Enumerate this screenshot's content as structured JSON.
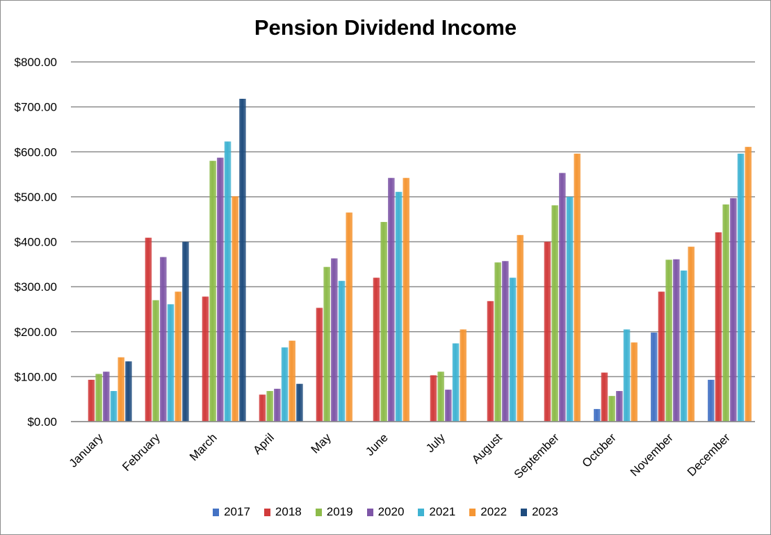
{
  "chart_data": {
    "type": "bar",
    "title": "Pension Dividend Income",
    "xlabel": "",
    "ylabel": "",
    "ylim": [
      0,
      800
    ],
    "yticks": [
      {
        "value": 0,
        "label": "$0.00"
      },
      {
        "value": 100,
        "label": "$100.00"
      },
      {
        "value": 200,
        "label": "$200.00"
      },
      {
        "value": 300,
        "label": "$300.00"
      },
      {
        "value": 400,
        "label": "$400.00"
      },
      {
        "value": 500,
        "label": "$500.00"
      },
      {
        "value": 600,
        "label": "$600.00"
      },
      {
        "value": 700,
        "label": "$700.00"
      },
      {
        "value": 800,
        "label": "$800.00"
      }
    ],
    "grid": true,
    "legend_position": "bottom",
    "categories": [
      "January",
      "February",
      "March",
      "April",
      "May",
      "June",
      "July",
      "August",
      "September",
      "October",
      "November",
      "December"
    ],
    "series": [
      {
        "name": "2017",
        "color": "#4472C4",
        "values": [
          0,
          0,
          0,
          0,
          0,
          0,
          0,
          0,
          0,
          28,
          198,
          93
        ]
      },
      {
        "name": "2018",
        "color": "#D13B3B",
        "values": [
          93,
          409,
          278,
          60,
          253,
          320,
          103,
          268,
          400,
          109,
          289,
          421
        ]
      },
      {
        "name": "2019",
        "color": "#8DBB4A",
        "values": [
          106,
          270,
          580,
          68,
          344,
          444,
          111,
          354,
          481,
          57,
          360,
          483
        ]
      },
      {
        "name": "2020",
        "color": "#7E56A7",
        "values": [
          111,
          366,
          587,
          73,
          363,
          542,
          71,
          357,
          553,
          68,
          361,
          497
        ]
      },
      {
        "name": "2021",
        "color": "#3FB3D2",
        "values": [
          68,
          261,
          623,
          165,
          313,
          511,
          174,
          320,
          500,
          205,
          336,
          596
        ]
      },
      {
        "name": "2022",
        "color": "#F59634",
        "values": [
          143,
          289,
          501,
          180,
          465,
          542,
          205,
          415,
          596,
          176,
          389,
          611
        ]
      },
      {
        "name": "2023",
        "color": "#1F4C7E",
        "values": [
          134,
          400,
          718,
          84,
          0,
          0,
          0,
          0,
          0,
          0,
          0,
          0
        ]
      }
    ]
  }
}
